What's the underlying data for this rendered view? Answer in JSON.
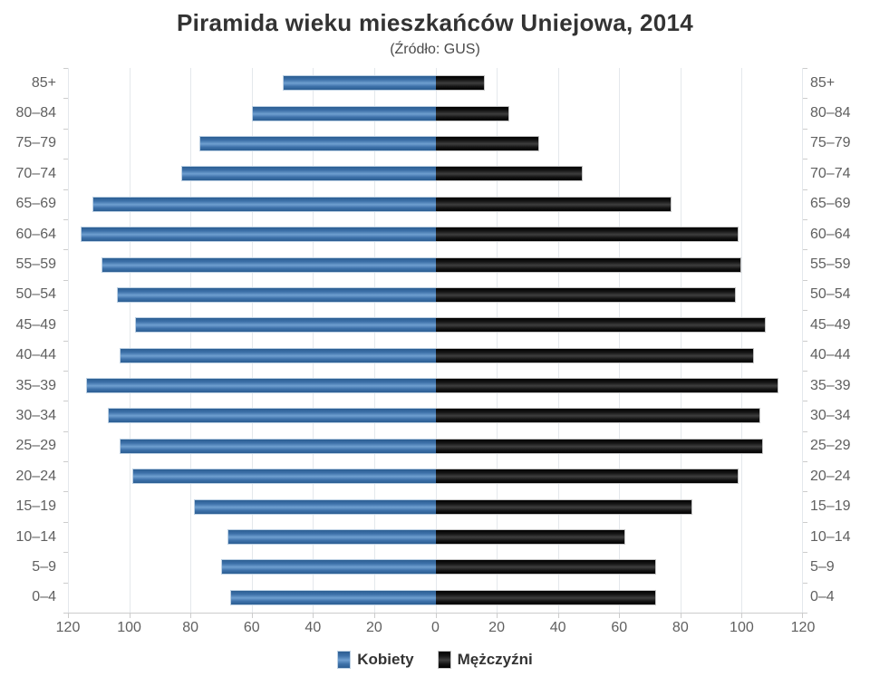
{
  "title": "Piramida wieku mieszkańców Uniejowa, 2014",
  "subtitle": "(Źródło: GUS)",
  "legend": {
    "female": "Kobiety",
    "male": "Mężczyźni"
  },
  "colors": {
    "female_bar": "#4572a7",
    "male_bar": "#101010",
    "gridline": "#e4e8ec",
    "axis_text": "#606060",
    "title_text": "#333333"
  },
  "chart_data": {
    "type": "bar",
    "subtype": "population-pyramid",
    "title": "Piramida wieku mieszkańców Uniejowa, 2014",
    "subtitle": "(Źródło: GUS)",
    "categories": [
      "85+",
      "80–84",
      "75–79",
      "70–74",
      "65–69",
      "60–64",
      "55–59",
      "50–54",
      "45–49",
      "40–44",
      "35–39",
      "30–34",
      "25–29",
      "20–24",
      "15–19",
      "10–14",
      "5–9",
      "0–4"
    ],
    "series": [
      {
        "name": "Kobiety",
        "side": "left",
        "color": "#4572a7",
        "values": [
          50,
          60,
          77,
          83,
          112,
          116,
          109,
          104,
          98,
          103,
          114,
          107,
          103,
          99,
          79,
          68,
          70,
          67
        ]
      },
      {
        "name": "Mężczyźni",
        "side": "right",
        "color": "#101010",
        "values": [
          16,
          24,
          34,
          48,
          77,
          99,
          100,
          98,
          108,
          104,
          112,
          106,
          107,
          99,
          84,
          62,
          72,
          72
        ]
      }
    ],
    "xlabel": "",
    "ylabel": "",
    "xlim_each_side": [
      0,
      120
    ],
    "x_ticks": [
      120,
      100,
      80,
      60,
      40,
      20,
      0,
      20,
      40,
      60,
      80,
      100,
      120
    ],
    "x_tick_labels": [
      "120",
      "100",
      "80",
      "60",
      "40",
      "20",
      "0",
      "20",
      "40",
      "60",
      "80",
      "100",
      "120"
    ],
    "grid": true,
    "legend_position": "bottom"
  }
}
